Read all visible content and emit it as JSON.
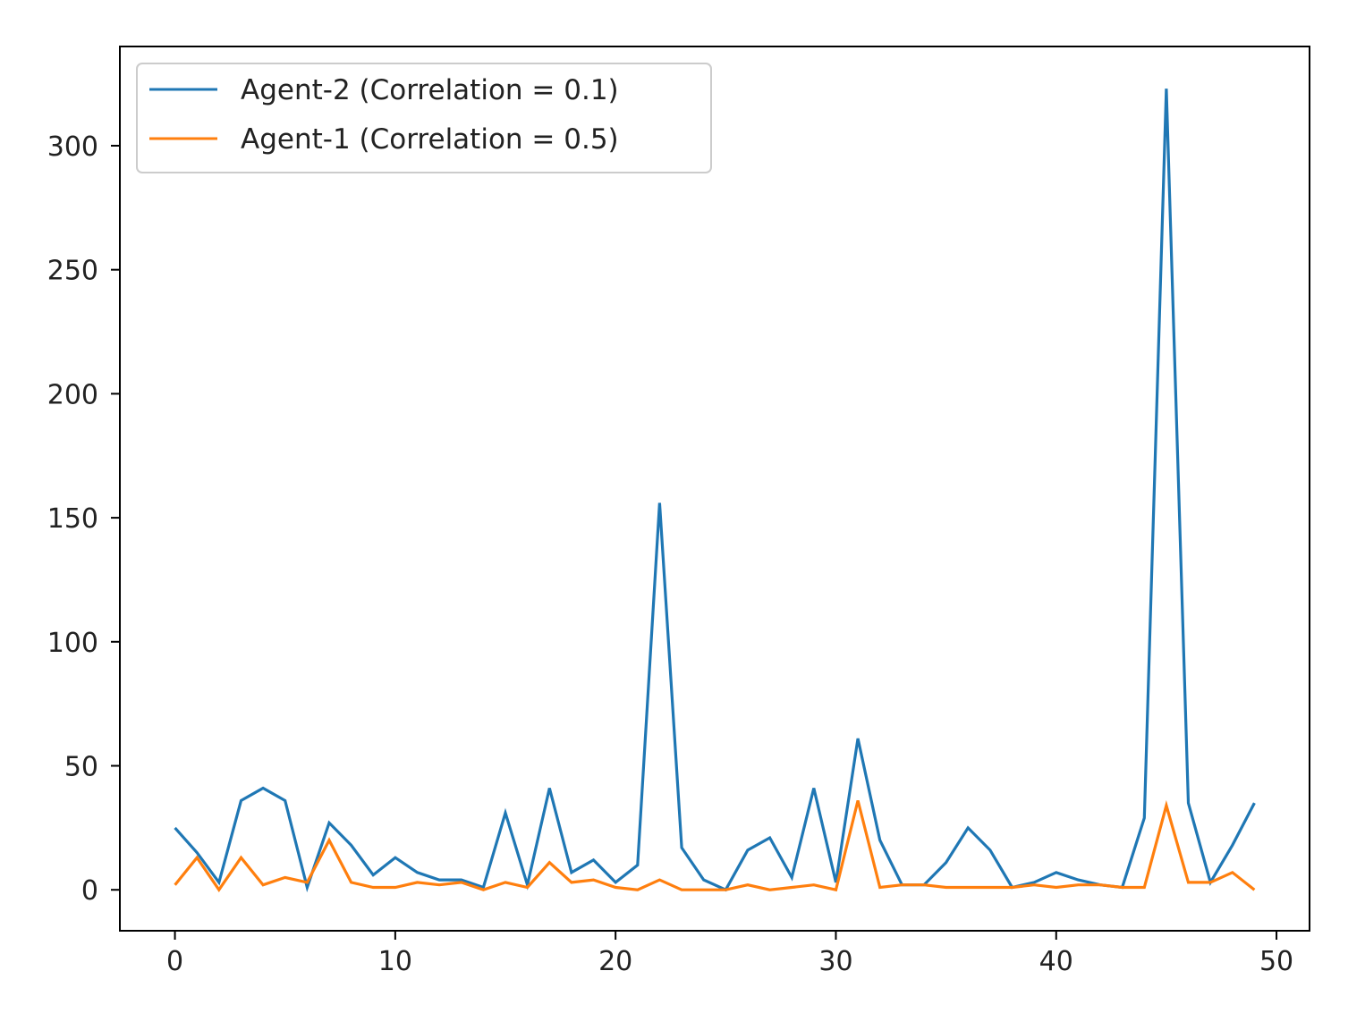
{
  "chart_data": {
    "type": "line",
    "title": "",
    "xlabel": "",
    "ylabel": "",
    "xlim": [
      -2.5,
      51.5
    ],
    "ylim": [
      -16.5,
      340
    ],
    "x_ticks": [
      0,
      10,
      20,
      30,
      40,
      50
    ],
    "y_ticks": [
      0,
      50,
      100,
      150,
      200,
      250,
      300
    ],
    "grid": false,
    "legend_position": "top-left",
    "x": [
      0,
      1,
      2,
      3,
      4,
      5,
      6,
      7,
      8,
      9,
      10,
      11,
      12,
      13,
      14,
      15,
      16,
      17,
      18,
      19,
      20,
      21,
      22,
      23,
      24,
      25,
      26,
      27,
      28,
      29,
      30,
      31,
      32,
      33,
      34,
      35,
      36,
      37,
      38,
      39,
      40,
      41,
      42,
      43,
      44,
      45,
      46,
      47,
      48,
      49
    ],
    "series": [
      {
        "name": "Agent-2 (Correlation = 0.1)",
        "color": "#1f77b4",
        "values": [
          25,
          15,
          3,
          36,
          41,
          36,
          1,
          27,
          18,
          6,
          13,
          7,
          4,
          4,
          1,
          31,
          2,
          41,
          7,
          12,
          3,
          10,
          156,
          17,
          4,
          0,
          16,
          21,
          5,
          41,
          3,
          61,
          20,
          2,
          2,
          11,
          25,
          16,
          1,
          3,
          7,
          4,
          2,
          1,
          29,
          323,
          35,
          3,
          18,
          35
        ]
      },
      {
        "name": "Agent-1 (Correlation = 0.5)",
        "color": "#ff7f0e",
        "values": [
          2,
          13,
          0,
          13,
          2,
          5,
          3,
          20,
          3,
          1,
          1,
          3,
          2,
          3,
          0,
          3,
          1,
          11,
          3,
          4,
          1,
          0,
          4,
          0,
          0,
          0,
          2,
          0,
          1,
          2,
          0,
          36,
          1,
          2,
          2,
          1,
          1,
          1,
          1,
          2,
          1,
          2,
          2,
          1,
          1,
          34,
          3,
          3,
          7,
          0
        ]
      }
    ]
  }
}
